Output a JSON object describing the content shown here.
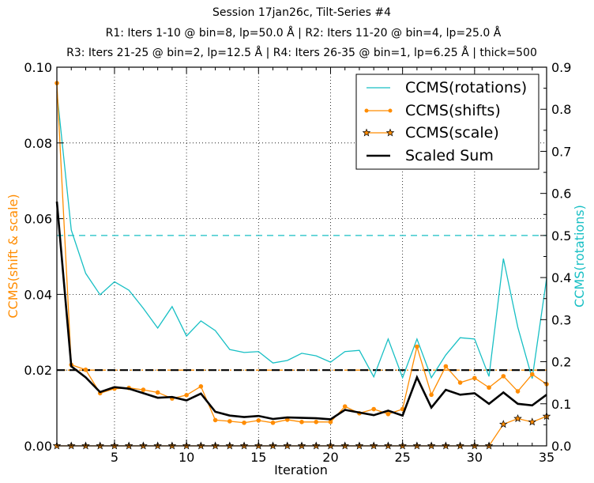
{
  "chart_data": {
    "type": "line",
    "title": "Session 17jan26c, Tilt-Series #4",
    "subtitle_lines": [
      "R1: Iters 1-10 @ bin=8, lp=50.0 Å | R2: Iters 11-20 @ bin=4, lp=25.0 Å",
      "R3: Iters 21-25 @ bin=2, lp=12.5 Å | R4: Iters 26-35 @ bin=1, lp=6.25 Å | thick=500"
    ],
    "xlabel": "Iteration",
    "ylabel_left": "CCMS(shift & scale)",
    "ylabel_right": "CCMS(rotations)",
    "xlim": [
      1,
      35
    ],
    "ylim_left": [
      0.0,
      0.1
    ],
    "ylim_right": [
      0.0,
      0.9
    ],
    "x_ticks": [
      "5",
      "10",
      "15",
      "20",
      "25",
      "30",
      "35"
    ],
    "y_left_ticks": [
      "0.00",
      "0.02",
      "0.04",
      "0.06",
      "0.08",
      "0.10"
    ],
    "y_right_ticks": [
      "0.0",
      "0.1",
      "0.2",
      "0.3",
      "0.4",
      "0.5",
      "0.6",
      "0.7",
      "0.8",
      "0.9"
    ],
    "grid": true,
    "legend_position": "top-right",
    "colors": {
      "rotations": "#17bfc4",
      "shifts": "#ff8c00",
      "scale": "#ff8c00",
      "sum": "#000000"
    },
    "x": [
      1,
      2,
      3,
      4,
      5,
      6,
      7,
      8,
      9,
      10,
      11,
      12,
      13,
      14,
      15,
      16,
      17,
      18,
      19,
      20,
      21,
      22,
      23,
      24,
      25,
      26,
      27,
      28,
      29,
      30,
      31,
      32,
      33,
      34,
      35
    ],
    "series": [
      {
        "name": "CCMS(rotations)",
        "axis": "right",
        "style": "line",
        "values": [
          0.842,
          0.513,
          0.41,
          0.359,
          0.39,
          0.37,
          0.327,
          0.28,
          0.331,
          0.261,
          0.297,
          0.274,
          0.229,
          0.222,
          0.224,
          0.197,
          0.203,
          0.22,
          0.214,
          0.199,
          0.224,
          0.227,
          0.164,
          0.254,
          0.162,
          0.254,
          0.162,
          0.216,
          0.257,
          0.254,
          0.165,
          0.445,
          0.282,
          0.16,
          0.398
        ]
      },
      {
        "name": "CCMS(shifts)",
        "axis": "left",
        "style": "line-dot",
        "values": [
          0.0958,
          0.0214,
          0.0201,
          0.0139,
          0.0151,
          0.0153,
          0.0148,
          0.0141,
          0.0125,
          0.0134,
          0.0157,
          0.0068,
          0.0065,
          0.0061,
          0.0067,
          0.0061,
          0.0069,
          0.0063,
          0.0063,
          0.0063,
          0.0104,
          0.0086,
          0.0097,
          0.0084,
          0.0097,
          0.0262,
          0.0135,
          0.021,
          0.0167,
          0.0179,
          0.0154,
          0.0184,
          0.0144,
          0.0189,
          0.0163
        ]
      },
      {
        "name": "CCMS(scale)",
        "axis": "left",
        "style": "line-star",
        "values": [
          0,
          0,
          0,
          0,
          0,
          0,
          0,
          0,
          0,
          0,
          0,
          0,
          0,
          0,
          0,
          0,
          0,
          0,
          0,
          0,
          0,
          0,
          0,
          0,
          0,
          0,
          0,
          0,
          0,
          0,
          0,
          0.0057,
          0.0072,
          0.0063,
          0.0078
        ]
      },
      {
        "name": "Scaled Sum",
        "axis": "left",
        "style": "thick-line",
        "values": [
          0.0645,
          0.021,
          0.0181,
          0.0142,
          0.0155,
          0.0151,
          0.0139,
          0.0127,
          0.0129,
          0.012,
          0.0138,
          0.009,
          0.008,
          0.0076,
          0.0079,
          0.0071,
          0.0075,
          0.0074,
          0.0073,
          0.007,
          0.0095,
          0.0088,
          0.0081,
          0.0093,
          0.008,
          0.0181,
          0.0101,
          0.0148,
          0.0135,
          0.0139,
          0.0111,
          0.0141,
          0.0111,
          0.0107,
          0.0135
        ]
      }
    ],
    "reference_lines": [
      {
        "name": "rotation-threshold",
        "axis": "right",
        "value": 0.5,
        "color": "#17bfc4",
        "style": "dashed"
      },
      {
        "name": "shift-threshold",
        "axis": "left",
        "value": 0.02,
        "color": "#ff8c00",
        "style": "dash-dot"
      },
      {
        "name": "sum-threshold",
        "axis": "left",
        "value": 0.02,
        "color": "#000000",
        "style": "dashed"
      }
    ]
  }
}
